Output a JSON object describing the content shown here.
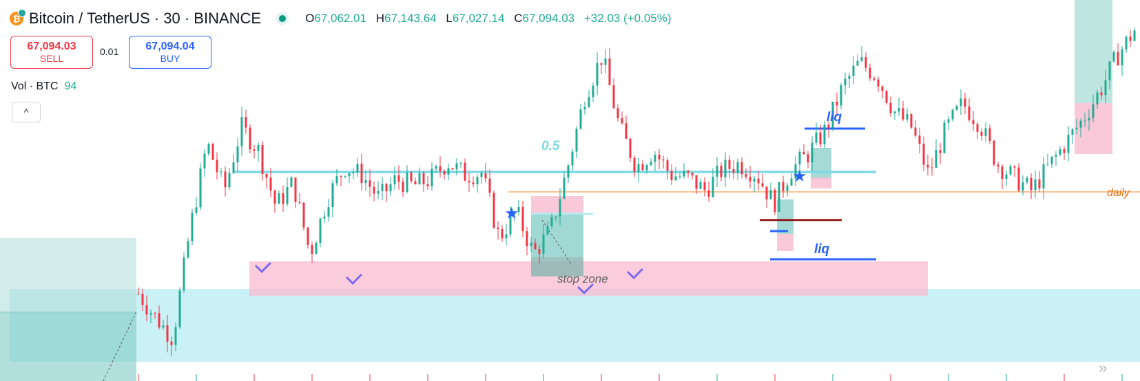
{
  "header": {
    "symbol": "Bitcoin",
    "separator": "/",
    "quote": "TetherUS · 30 · BINANCE",
    "coin_icon": "bitcoin-icon",
    "status_icon": "market-open-dot",
    "ohlc": {
      "o_label": "O",
      "o": "67,062.01",
      "h_label": "H",
      "h": "67,143.64",
      "l_label": "L",
      "l": "67,027.14",
      "c_label": "C",
      "c": "67,094.03",
      "change": "+32.03 (+0.05%)"
    }
  },
  "trade": {
    "sell_price": "67,094.03",
    "sell_label": "SELL",
    "spread": "0.01",
    "buy_price": "67,094.04",
    "buy_label": "BUY"
  },
  "volume": {
    "label": "Vol · BTC",
    "value": "94"
  },
  "controls": {
    "collapse_glyph": "^",
    "scroll_glyph": "»"
  },
  "colors": {
    "up": "#22ab94",
    "down": "#f23645",
    "level": "#7fd8e6",
    "daily": "#ef6c00",
    "liq": "#2962ff",
    "zone_pink": "#f8bbd0",
    "zone_cyan": "#b2ebf2"
  },
  "chart_data": {
    "type": "candlestick",
    "interval": "30",
    "close_path": [
      65900,
      65750,
      65620,
      66300,
      66850,
      66550,
      66950,
      66800,
      66450,
      66600,
      66150,
      66500,
      66700,
      66650,
      66500,
      66620,
      66580,
      66620,
      66730,
      66650,
      66660,
      66250,
      66420,
      66150,
      66300,
      66700,
      67150,
      67400,
      66950,
      66700,
      66800,
      66650,
      66630,
      66550,
      66680,
      66720,
      66650,
      66470,
      66680,
      66780,
      66930,
      67200,
      67360,
      67270,
      67050,
      66950,
      66650,
      66930,
      67100,
      66970,
      66720,
      66630,
      66550,
      66700,
      66850,
      67000,
      67180,
      67400,
      67560
    ],
    "ohlc_last": {
      "open": 67062.01,
      "high": 67143.64,
      "low": 67027.14,
      "close": 67094.03
    },
    "annotations": [
      {
        "type": "hline",
        "label": "0.5"
      },
      {
        "type": "hline",
        "label": "daily"
      },
      {
        "type": "hline",
        "label": "liq"
      },
      {
        "type": "hline",
        "label": "liq"
      },
      {
        "type": "zone",
        "label": "stop zone"
      }
    ]
  },
  "labels": {
    "level_label": "0.5",
    "daily_label": "daily",
    "liq_top": "liq",
    "liq_bottom": "liq",
    "stop_zone": "stop zone"
  }
}
